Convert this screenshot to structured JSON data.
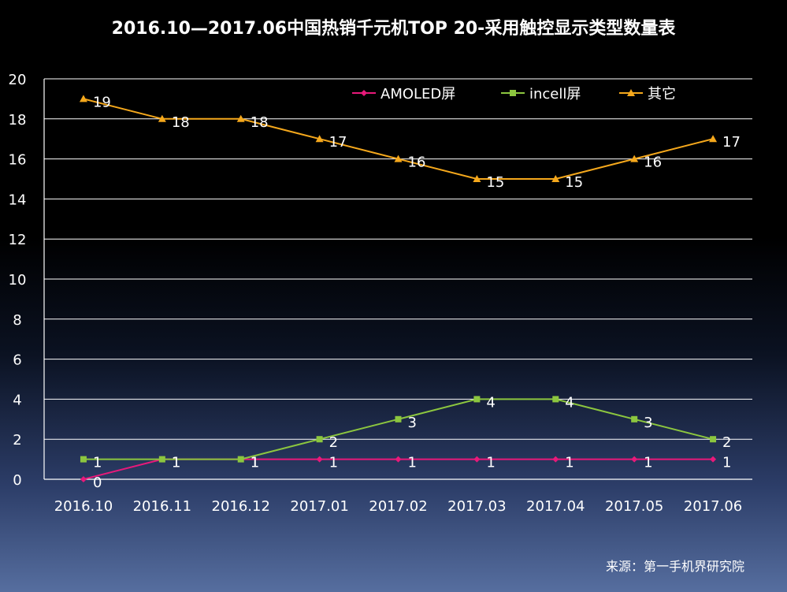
{
  "chart_data": {
    "type": "line",
    "title": "2016.10—2017.06中国热销千元机TOP  20-采用触控显示类型数量表",
    "categories": [
      "2016.10",
      "2016.11",
      "2016.12",
      "2017.01",
      "2017.02",
      "2017.03",
      "2017.04",
      "2017.05",
      "2017.06"
    ],
    "ylim": [
      0,
      20
    ],
    "yticks": [
      "0",
      "2",
      "4",
      "6",
      "8",
      "10",
      "12",
      "14",
      "16",
      "18",
      "20"
    ],
    "grid": true,
    "legend_position": "top-right",
    "series": [
      {
        "name": "AMOLED屏",
        "color": "#e8197a",
        "marker": "diamond",
        "values": [
          0,
          1,
          1,
          1,
          1,
          1,
          1,
          1,
          1
        ],
        "labels": [
          "0",
          "1",
          "1",
          "1",
          "1",
          "1",
          "1",
          "1",
          "1"
        ]
      },
      {
        "name": "incell屏",
        "color": "#8cc63f",
        "marker": "square",
        "values": [
          1,
          1,
          1,
          2,
          3,
          4,
          4,
          3,
          2
        ],
        "labels": [
          "1",
          "1",
          "1",
          "2",
          "3",
          "4",
          "4",
          "3",
          "2"
        ]
      },
      {
        "name": "其它",
        "color": "#f5a81c",
        "marker": "triangle",
        "values": [
          19,
          18,
          18,
          17,
          16,
          15,
          15,
          16,
          17
        ],
        "labels": [
          "19",
          "18",
          "18",
          "17",
          "16",
          "15",
          "15",
          "16",
          "17"
        ]
      }
    ]
  },
  "source": "来源：第一手机界研究院"
}
